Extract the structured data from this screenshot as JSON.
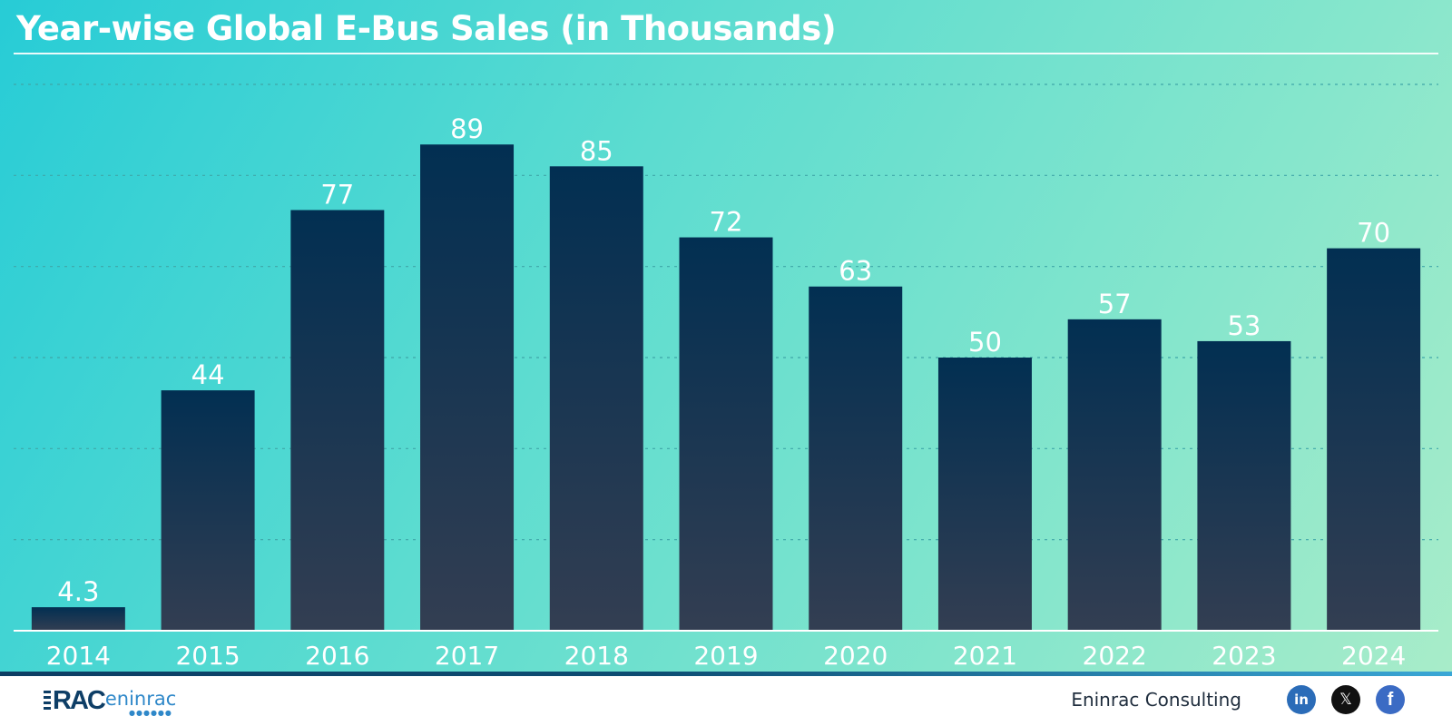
{
  "chart_data": {
    "type": "bar",
    "title": "Year-wise Global E-Bus Sales (in Thousands)",
    "categories": [
      "2014",
      "2015",
      "2016",
      "2017",
      "2018",
      "2019",
      "2020",
      "2021",
      "2022",
      "2023",
      "2024"
    ],
    "values": [
      4.3,
      44,
      77,
      89,
      85,
      72,
      63,
      50,
      57,
      53,
      70
    ],
    "data_labels": [
      "4.3",
      "44",
      "77",
      "89",
      "85",
      "72",
      "63",
      "50",
      "57",
      "53",
      "70"
    ],
    "xlabel": "",
    "ylabel": "",
    "ylim": [
      0,
      100
    ],
    "grid": true,
    "legend": "none",
    "colors": {
      "bar_top": "#022f52",
      "bar_bottom": "#333e52",
      "text": "#ffffff",
      "grid": "#3fa6a8"
    }
  },
  "footer": {
    "logo_mark": "RAC",
    "logo_text": "eninrac",
    "brand": "Eninrac Consulting",
    "social": [
      {
        "name": "linkedin-icon",
        "glyph": "in"
      },
      {
        "name": "x-icon",
        "glyph": "𝕏"
      },
      {
        "name": "facebook-icon",
        "glyph": "f"
      }
    ]
  }
}
